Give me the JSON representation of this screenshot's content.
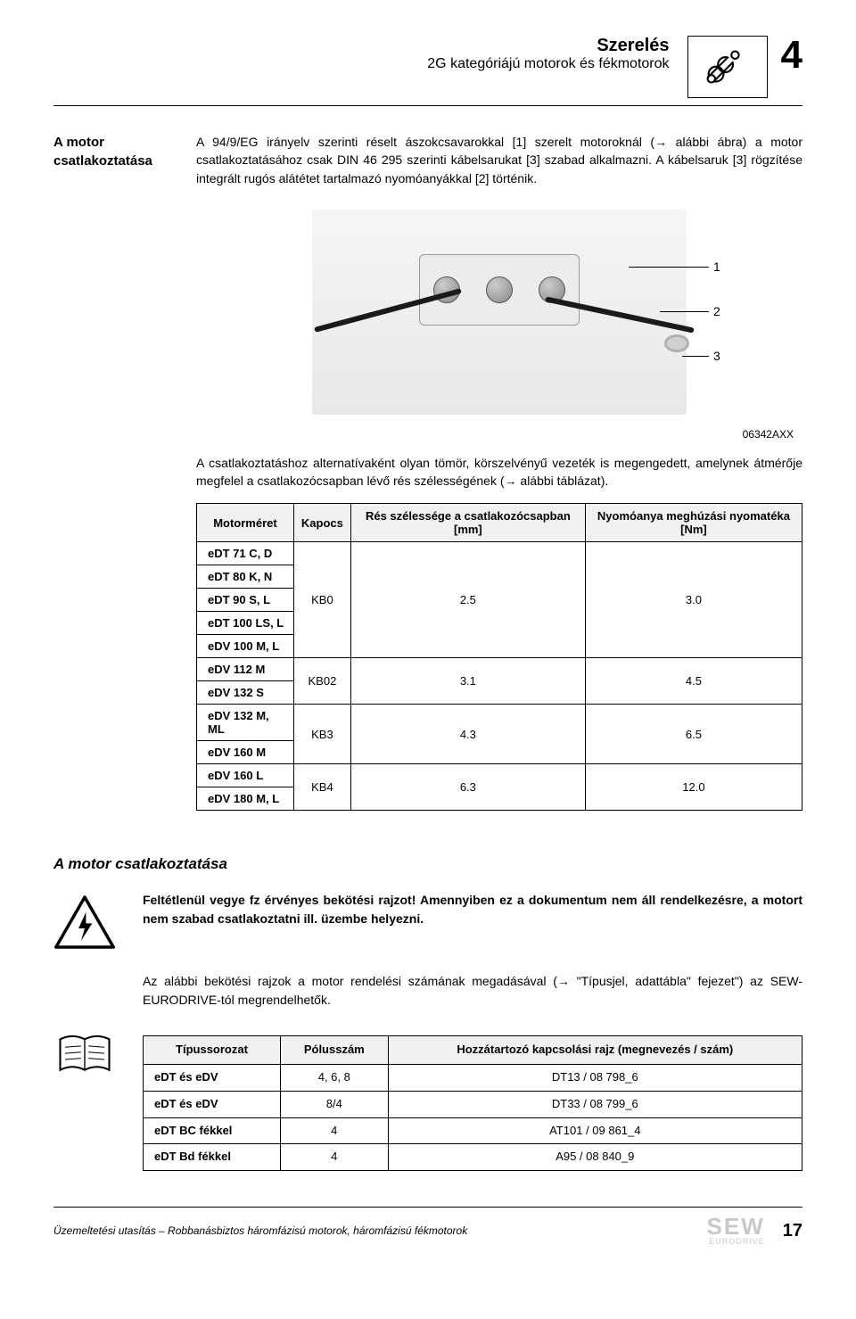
{
  "header": {
    "title": "Szerelés",
    "subtitle": "2G kategóriájú motorok és fékmotorok",
    "chapter": "4"
  },
  "sectionA": {
    "label": "A motor csatlakoztatása",
    "para1": "A 94/9/EG irányelv szerinti réselt ászokcsavarokkal [1] szerelt motoroknál (→ alábbi ábra) a motor csatlakoztatásához csak DIN 46 295 szerinti kábelsarukat [3] szabad alkalmazni. A kábelsaruk [3] rögzítése integrált rugós alátétet tartalmazó nyomóanyákkal [2] történik."
  },
  "figure": {
    "code": "06342AXX",
    "callouts": [
      "1",
      "2",
      "3"
    ]
  },
  "para2": "A csatlakoztatáshoz alternatívaként olyan tömör, körszelvényű vezeték is megengedett, amelynek átmérője megfelel a csatlakozócsapban lévő rés szélességének (→ alábbi táblázat).",
  "table1": {
    "headers": [
      "Motorméret",
      "Kapocs",
      "Rés szélessége a csatlakozócsapban [mm]",
      "Nyomóanya meghúzási nyomatéka [Nm]"
    ],
    "groups": [
      {
        "sizes": [
          "eDT 71 C, D",
          "eDT 80 K, N",
          "eDT 90 S, L",
          "eDT 100 LS, L",
          "eDV 100 M, L"
        ],
        "kapocs": "KB0",
        "res": "2.5",
        "nyom": "3.0"
      },
      {
        "sizes": [
          "eDV 112 M",
          "eDV 132 S"
        ],
        "kapocs": "KB02",
        "res": "3.1",
        "nyom": "4.5"
      },
      {
        "sizes": [
          "eDV 132 M, ML",
          "eDV 160 M"
        ],
        "kapocs": "KB3",
        "res": "4.3",
        "nyom": "6.5"
      },
      {
        "sizes": [
          "eDV 160 L",
          "eDV 180 M, L"
        ],
        "kapocs": "KB4",
        "res": "6.3",
        "nyom": "12.0"
      }
    ]
  },
  "sectionB": {
    "title": "A motor csatlakoztatása",
    "warn": "Feltétlenül vegye fz érvényes bekötési rajzot! Amennyiben ez a dokumentum nem áll rendelkezésre, a motort nem szabad csatlakoztatni ill. üzembe helyezni.",
    "info": "Az alábbi bekötési rajzok a motor rendelési számának megadásával (→ \"Típusjel, adattábla\" fejezet\") az SEW-EURODRIVE-tól megrendelhetők."
  },
  "table2": {
    "headers": [
      "Típussorozat",
      "Pólusszám",
      "Hozzátartozó kapcsolási rajz (megnevezés / szám)"
    ],
    "rows": [
      [
        "eDT és eDV",
        "4, 6, 8",
        "DT13 / 08 798_6"
      ],
      [
        "eDT és eDV",
        "8/4",
        "DT33 / 08 799_6"
      ],
      [
        "eDT BC fékkel",
        "4",
        "AT101 / 09 861_4"
      ],
      [
        "eDT Bd fékkel",
        "4",
        "A95 / 08 840_9"
      ]
    ]
  },
  "footer": {
    "text": "Üzemeltetési utasítás – Robbanásbiztos háromfázisú motorok, háromfázisú fékmotorok",
    "logo_big": "SEW",
    "logo_small": "EURODRIVE",
    "page": "17"
  },
  "colors": {
    "text": "#000000",
    "bg": "#ffffff",
    "th_bg": "#f0f0f0",
    "logo": "#c8c8c8"
  }
}
